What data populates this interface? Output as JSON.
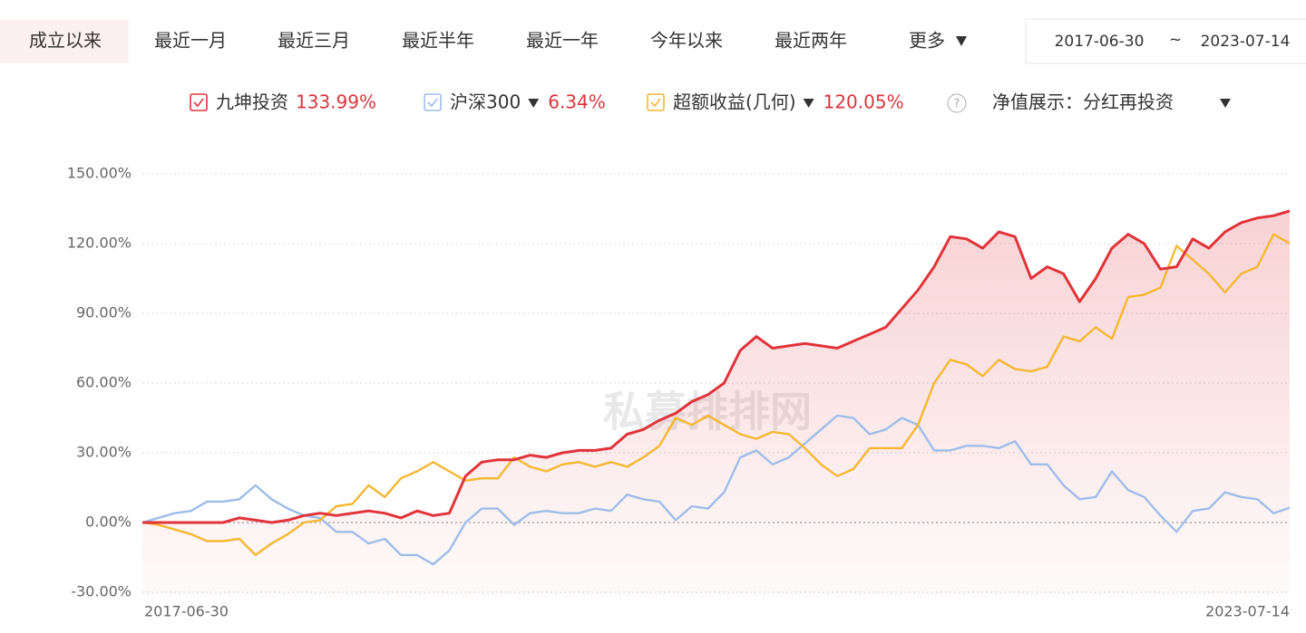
{
  "tabs": [
    "成立以来",
    "最近一月",
    "最近三月",
    "最近半年",
    "最近一年",
    "今年以来",
    "最近两年",
    "更多"
  ],
  "date_range": {
    "start": "2017-06-30",
    "separator": "~",
    "end": "2023-07-14"
  },
  "nav_display": "净值展示：分红再投资",
  "watermark": "私募排排网",
  "chart_data": {
    "type": "line",
    "categories": [
      "2017-06-30",
      null,
      null,
      null,
      null,
      null,
      null,
      null,
      null,
      null,
      null,
      null,
      null,
      null,
      null,
      null,
      null,
      null,
      null,
      null,
      null,
      null,
      null,
      null,
      null,
      null,
      null,
      null,
      null,
      null,
      null,
      null,
      null,
      null,
      null,
      null,
      null,
      null,
      null,
      null,
      null,
      null,
      null,
      null,
      null,
      null,
      null,
      null,
      null,
      null,
      null,
      null,
      null,
      null,
      null,
      null,
      null,
      null,
      null,
      null,
      null,
      null,
      null,
      null,
      null,
      null,
      null,
      null,
      null,
      null,
      null,
      "2023-07-14"
    ],
    "series": [
      {
        "name": "九坤投资",
        "color": "#e0333a",
        "area": true,
        "values": [
          0,
          0,
          0,
          0,
          0,
          0,
          2,
          1,
          0,
          1,
          3,
          4,
          3,
          4,
          5,
          4,
          2,
          5,
          3,
          4,
          20,
          26,
          27,
          27,
          29,
          28,
          30,
          31,
          31,
          32,
          38,
          40,
          44,
          47,
          52,
          55,
          60,
          74,
          80,
          75,
          76,
          77,
          76,
          75,
          78,
          81,
          84,
          92,
          100,
          110,
          123,
          122,
          118,
          125,
          123,
          105,
          110,
          107,
          95,
          105,
          118,
          124,
          120,
          109,
          110,
          122,
          118,
          125,
          129,
          131,
          132,
          133.99
        ],
        "value_labels": [
          null,
          null,
          null,
          null,
          null,
          null,
          null,
          null,
          null,
          null,
          null,
          null,
          null,
          null,
          null,
          null,
          null,
          null,
          null,
          null,
          null,
          null,
          null,
          null,
          null,
          null,
          null,
          null,
          null,
          null,
          null,
          null,
          null,
          null,
          null,
          null,
          null,
          null,
          null,
          null,
          null,
          null,
          null,
          null,
          null,
          null,
          null,
          null,
          null,
          null,
          null,
          null,
          null,
          null,
          null,
          null,
          null,
          null,
          null,
          null,
          null,
          null,
          null,
          null,
          null,
          null,
          null,
          null,
          null,
          null,
          null,
          "133.99%"
        ]
      },
      {
        "name": "沪深300",
        "color": "#9dbde8",
        "values": [
          0,
          2,
          4,
          5,
          9,
          9,
          10,
          16,
          10,
          6,
          3,
          2,
          -4,
          -4,
          -9,
          -7,
          -14,
          -14,
          -18,
          -12,
          0,
          6,
          6,
          -1,
          4,
          5,
          4,
          4,
          6,
          5,
          12,
          10,
          9,
          1,
          7,
          6,
          13,
          28,
          31,
          25,
          28,
          34,
          40,
          46,
          45,
          38,
          40,
          45,
          42,
          31,
          31,
          33,
          33,
          32,
          35,
          25,
          25,
          16,
          10,
          11,
          22,
          14,
          11,
          3,
          -4,
          5,
          6,
          13,
          11,
          10,
          4,
          6.34
        ],
        "value_labels": [
          null,
          null,
          null,
          null,
          null,
          null,
          null,
          null,
          null,
          null,
          null,
          null,
          null,
          null,
          null,
          null,
          null,
          null,
          null,
          null,
          null,
          null,
          null,
          null,
          null,
          null,
          null,
          null,
          null,
          null,
          null,
          null,
          null,
          null,
          null,
          null,
          null,
          null,
          null,
          null,
          null,
          null,
          null,
          null,
          null,
          null,
          null,
          null,
          null,
          null,
          null,
          null,
          null,
          null,
          null,
          null,
          null,
          null,
          null,
          null,
          null,
          null,
          null,
          null,
          null,
          null,
          null,
          null,
          null,
          null,
          null,
          "6.34%"
        ]
      },
      {
        "name": "超额收益(几何)",
        "color": "#f5b731",
        "values": [
          0,
          -1,
          -3,
          -5,
          -8,
          -8,
          -7,
          -14,
          -9,
          -5,
          0,
          1,
          7,
          8,
          16,
          11,
          19,
          22,
          26,
          22,
          18,
          19,
          19,
          28,
          24,
          22,
          25,
          26,
          24,
          26,
          24,
          28,
          33,
          45,
          42,
          46,
          42,
          38,
          36,
          39,
          38,
          32,
          25,
          20,
          23,
          32,
          32,
          32,
          42,
          60,
          70,
          68,
          63,
          70,
          66,
          65,
          67,
          80,
          78,
          84,
          79,
          97,
          98,
          101,
          119,
          113,
          107,
          99,
          107,
          110,
          124,
          120.05
        ],
        "value_labels": [
          null,
          null,
          null,
          null,
          null,
          null,
          null,
          null,
          null,
          null,
          null,
          null,
          null,
          null,
          null,
          null,
          null,
          null,
          null,
          null,
          null,
          null,
          null,
          null,
          null,
          null,
          null,
          null,
          null,
          null,
          null,
          null,
          null,
          null,
          null,
          null,
          null,
          null,
          null,
          null,
          null,
          null,
          null,
          null,
          null,
          null,
          null,
          null,
          null,
          null,
          null,
          null,
          null,
          null,
          null,
          null,
          null,
          null,
          null,
          null,
          null,
          null,
          null,
          null,
          null,
          null,
          null,
          null,
          null,
          null,
          null,
          "120.05%"
        ]
      }
    ],
    "ylim": [
      -32,
      155
    ],
    "yticks": [
      {
        "value": -30,
        "label": "-30.00%"
      },
      {
        "value": 0,
        "label": "0.00%"
      },
      {
        "value": 30,
        "label": "30.00%"
      },
      {
        "value": 60,
        "label": "60.00%"
      },
      {
        "value": 90,
        "label": "90.00%"
      },
      {
        "value": 120,
        "label": "120.00%"
      },
      {
        "value": 150,
        "label": "150.00%"
      }
    ],
    "grid": true
  }
}
